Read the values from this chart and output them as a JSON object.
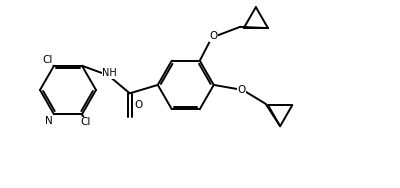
{
  "bg_color": "#ffffff",
  "line_color": "#000000",
  "lw": 1.4,
  "fs": 7.5,
  "figsize": [
    4.0,
    1.88
  ],
  "dpi": 100,
  "xlim": [
    0,
    100
  ],
  "ylim": [
    0,
    47
  ]
}
